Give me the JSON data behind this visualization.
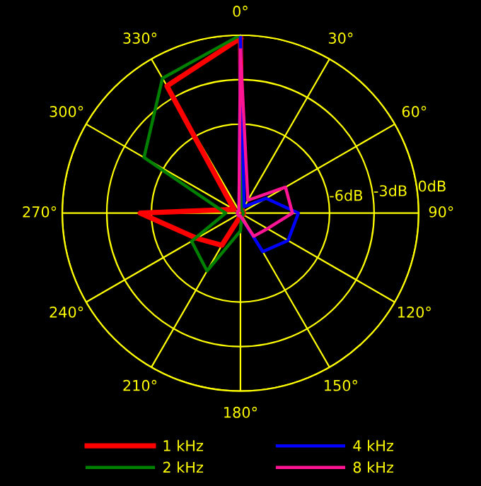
{
  "chart_data": {
    "type": "radar",
    "categories": [
      "0°",
      "30°",
      "60°",
      "90°",
      "120°",
      "150°",
      "180°",
      "210°",
      "240°",
      "270°",
      "300°",
      "330°"
    ],
    "ylim": [
      -12,
      0
    ],
    "yticks": [
      {
        "value": -6,
        "label": "-6dB"
      },
      {
        "value": -3,
        "label": "-3dB"
      },
      {
        "value": 0,
        "label": "0dB"
      }
    ],
    "grid": true,
    "legend": "bottom",
    "line_style": "solid",
    "marker": "none",
    "series": [
      {
        "name": "1 kHz",
        "color": "#ff0000",
        "values": [
          -0.2,
          -11.8,
          -11.8,
          -11.8,
          -11.8,
          -11.8,
          -11.8,
          -9.5,
          -8.6,
          -5.25,
          -11.5,
          -2.1
        ]
      },
      {
        "name": "2 kHz",
        "color": "#008000",
        "values": [
          0,
          -11.8,
          -11.8,
          -11.8,
          -11.8,
          -11.8,
          -10.8,
          -7.5,
          -8.2,
          -11,
          -4.5,
          -1.5
        ]
      },
      {
        "name": "4 kHz",
        "color": "#0000ff",
        "values": [
          -0.1,
          -11.5,
          -10,
          -8.1,
          -8.3,
          -9,
          -11.8,
          -11.8,
          -11.8,
          -11.8,
          -11.8,
          -11.8
        ]
      },
      {
        "name": "8 kHz",
        "color": "#ff1493",
        "values": [
          -1,
          -11,
          -8.5,
          -8.5,
          -9.9,
          -10.2,
          -11.8,
          -11.8,
          -11.8,
          -11.8,
          -11.8,
          -11.8
        ]
      }
    ]
  }
}
